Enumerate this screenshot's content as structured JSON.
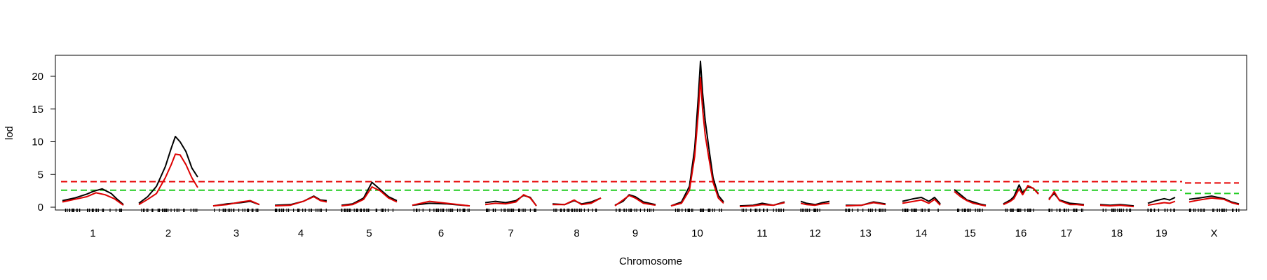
{
  "chart_data": {
    "type": "line",
    "xlabel": "Chromosome",
    "ylabel": "lod",
    "ylim": [
      0,
      23
    ],
    "yticks": [
      0,
      5,
      10,
      15,
      20
    ],
    "grid": false,
    "chromosomes": [
      "1",
      "2",
      "3",
      "4",
      "5",
      "6",
      "7",
      "8",
      "9",
      "10",
      "11",
      "12",
      "13",
      "14",
      "15",
      "16",
      "17",
      "18",
      "19",
      "X"
    ],
    "colors": {
      "series_black": "#000000",
      "series_red": "#dd0000",
      "threshold_red": "#e60000",
      "threshold_green": "#22cc22"
    },
    "thresholds": [
      {
        "color": "red",
        "autosome": 3.9,
        "x_chr": 3.7
      },
      {
        "color": "green",
        "autosome": 2.6,
        "x_chr": 2.1
      }
    ],
    "series": [
      {
        "color": "black",
        "peaks": [
          [
            [
              0,
              1.0
            ],
            [
              0.2,
              1.4
            ],
            [
              0.4,
              2.0
            ],
            [
              0.5,
              2.4
            ],
            [
              0.65,
              2.8
            ],
            [
              0.8,
              2.1
            ],
            [
              0.9,
              1.2
            ],
            [
              1,
              0.4
            ]
          ],
          [
            [
              0,
              0.6
            ],
            [
              0.15,
              1.6
            ],
            [
              0.3,
              3.2
            ],
            [
              0.45,
              6.2
            ],
            [
              0.55,
              9.0
            ],
            [
              0.62,
              10.8
            ],
            [
              0.7,
              10.0
            ],
            [
              0.8,
              8.5
            ],
            [
              0.9,
              6.0
            ],
            [
              1,
              4.6
            ]
          ],
          [
            [
              0,
              0.2
            ],
            [
              0.3,
              0.5
            ],
            [
              0.6,
              0.7
            ],
            [
              0.8,
              0.9
            ],
            [
              1,
              0.4
            ]
          ],
          [
            [
              0,
              0.3
            ],
            [
              0.3,
              0.4
            ],
            [
              0.55,
              0.9
            ],
            [
              0.75,
              1.7
            ],
            [
              0.88,
              1.1
            ],
            [
              1,
              1.0
            ]
          ],
          [
            [
              0,
              0.3
            ],
            [
              0.2,
              0.5
            ],
            [
              0.4,
              1.4
            ],
            [
              0.55,
              3.8
            ],
            [
              0.7,
              2.7
            ],
            [
              0.85,
              1.6
            ],
            [
              1,
              1.0
            ]
          ],
          [
            [
              0,
              0.3
            ],
            [
              0.3,
              0.6
            ],
            [
              0.6,
              0.5
            ],
            [
              1,
              0.2
            ]
          ],
          [
            [
              0,
              0.7
            ],
            [
              0.2,
              0.9
            ],
            [
              0.4,
              0.7
            ],
            [
              0.6,
              1.0
            ],
            [
              0.75,
              1.8
            ],
            [
              0.88,
              1.5
            ],
            [
              1,
              0.2
            ]
          ],
          [
            [
              0,
              0.5
            ],
            [
              0.25,
              0.4
            ],
            [
              0.45,
              1.0
            ],
            [
              0.6,
              0.5
            ],
            [
              0.8,
              0.8
            ],
            [
              1,
              1.4
            ]
          ],
          [
            [
              0,
              0.3
            ],
            [
              0.2,
              0.9
            ],
            [
              0.35,
              1.9
            ],
            [
              0.5,
              1.6
            ],
            [
              0.7,
              0.8
            ],
            [
              1,
              0.4
            ]
          ],
          [
            [
              0,
              0.2
            ],
            [
              0.2,
              0.8
            ],
            [
              0.35,
              3.2
            ],
            [
              0.45,
              9.0
            ],
            [
              0.52,
              17.0
            ],
            [
              0.56,
              22.3
            ],
            [
              0.6,
              17.5
            ],
            [
              0.65,
              13.2
            ],
            [
              0.72,
              9.0
            ],
            [
              0.8,
              4.5
            ],
            [
              0.9,
              1.8
            ],
            [
              1,
              0.8
            ]
          ],
          [
            [
              0,
              0.2
            ],
            [
              0.3,
              0.3
            ],
            [
              0.5,
              0.6
            ],
            [
              0.75,
              0.3
            ],
            [
              1,
              0.8
            ]
          ],
          [
            [
              0,
              0.9
            ],
            [
              0.2,
              0.6
            ],
            [
              0.5,
              0.4
            ],
            [
              0.75,
              0.7
            ],
            [
              1,
              0.9
            ]
          ],
          [
            [
              0,
              0.3
            ],
            [
              0.4,
              0.3
            ],
            [
              0.7,
              0.8
            ],
            [
              1,
              0.5
            ]
          ],
          [
            [
              0,
              0.9
            ],
            [
              0.3,
              1.3
            ],
            [
              0.5,
              1.5
            ],
            [
              0.7,
              0.9
            ],
            [
              0.85,
              1.5
            ],
            [
              1,
              0.5
            ]
          ],
          [
            [
              0,
              2.7
            ],
            [
              0.2,
              1.9
            ],
            [
              0.4,
              1.1
            ],
            [
              0.6,
              0.8
            ],
            [
              0.8,
              0.5
            ],
            [
              1,
              0.3
            ]
          ],
          [
            [
              0,
              0.5
            ],
            [
              0.2,
              1.1
            ],
            [
              0.3,
              1.6
            ],
            [
              0.45,
              3.4
            ],
            [
              0.55,
              2.2
            ],
            [
              0.7,
              3.1
            ],
            [
              0.85,
              2.9
            ],
            [
              1,
              2.1
            ]
          ],
          [
            [
              0,
              1.3
            ],
            [
              0.15,
              2.1
            ],
            [
              0.3,
              1.1
            ],
            [
              0.6,
              0.6
            ],
            [
              0.8,
              0.5
            ],
            [
              1,
              0.4
            ]
          ],
          [
            [
              0,
              0.4
            ],
            [
              0.3,
              0.3
            ],
            [
              0.6,
              0.4
            ],
            [
              1,
              0.2
            ]
          ],
          [
            [
              0,
              0.6
            ],
            [
              0.3,
              1.0
            ],
            [
              0.6,
              1.3
            ],
            [
              0.8,
              1.1
            ],
            [
              1,
              1.5
            ]
          ],
          [
            [
              0,
              1.2
            ],
            [
              0.2,
              1.4
            ],
            [
              0.45,
              1.7
            ],
            [
              0.7,
              1.3
            ],
            [
              0.85,
              0.8
            ],
            [
              1,
              0.5
            ]
          ]
        ]
      },
      {
        "color": "red",
        "peaks": [
          [
            [
              0,
              0.8
            ],
            [
              0.2,
              1.2
            ],
            [
              0.4,
              1.6
            ],
            [
              0.55,
              2.2
            ],
            [
              0.7,
              1.9
            ],
            [
              0.85,
              1.3
            ],
            [
              1,
              0.3
            ]
          ],
          [
            [
              0,
              0.4
            ],
            [
              0.15,
              1.2
            ],
            [
              0.3,
              2.1
            ],
            [
              0.45,
              4.5
            ],
            [
              0.55,
              6.5
            ],
            [
              0.62,
              8.1
            ],
            [
              0.7,
              8.0
            ],
            [
              0.8,
              6.5
            ],
            [
              0.9,
              4.5
            ],
            [
              1,
              3.0
            ]
          ],
          [
            [
              0,
              0.2
            ],
            [
              0.3,
              0.4
            ],
            [
              0.6,
              0.8
            ],
            [
              0.8,
              1.0
            ],
            [
              1,
              0.4
            ]
          ],
          [
            [
              0,
              0.2
            ],
            [
              0.3,
              0.3
            ],
            [
              0.55,
              0.9
            ],
            [
              0.75,
              1.6
            ],
            [
              0.88,
              1.0
            ],
            [
              1,
              0.8
            ]
          ],
          [
            [
              0,
              0.2
            ],
            [
              0.2,
              0.4
            ],
            [
              0.4,
              1.2
            ],
            [
              0.55,
              3.1
            ],
            [
              0.7,
              2.5
            ],
            [
              0.85,
              1.4
            ],
            [
              1,
              0.8
            ]
          ],
          [
            [
              0,
              0.3
            ],
            [
              0.3,
              0.9
            ],
            [
              0.6,
              0.6
            ],
            [
              1,
              0.2
            ]
          ],
          [
            [
              0,
              0.4
            ],
            [
              0.2,
              0.6
            ],
            [
              0.4,
              0.5
            ],
            [
              0.6,
              0.8
            ],
            [
              0.75,
              1.9
            ],
            [
              0.88,
              1.4
            ],
            [
              1,
              0.2
            ]
          ],
          [
            [
              0,
              0.4
            ],
            [
              0.25,
              0.4
            ],
            [
              0.45,
              1.1
            ],
            [
              0.6,
              0.4
            ],
            [
              0.8,
              0.6
            ],
            [
              1,
              1.4
            ]
          ],
          [
            [
              0,
              0.2
            ],
            [
              0.2,
              1.1
            ],
            [
              0.35,
              1.8
            ],
            [
              0.5,
              1.4
            ],
            [
              0.7,
              0.6
            ],
            [
              1,
              0.3
            ]
          ],
          [
            [
              0,
              0.2
            ],
            [
              0.2,
              0.6
            ],
            [
              0.35,
              2.6
            ],
            [
              0.45,
              7.8
            ],
            [
              0.52,
              14.5
            ],
            [
              0.56,
              19.8
            ],
            [
              0.6,
              15.0
            ],
            [
              0.65,
              11.0
            ],
            [
              0.72,
              7.5
            ],
            [
              0.8,
              3.8
            ],
            [
              0.9,
              1.4
            ],
            [
              1,
              0.6
            ]
          ],
          [
            [
              0,
              0.1
            ],
            [
              0.3,
              0.2
            ],
            [
              0.5,
              0.4
            ],
            [
              0.75,
              0.3
            ],
            [
              1,
              0.7
            ]
          ],
          [
            [
              0,
              0.6
            ],
            [
              0.2,
              0.4
            ],
            [
              0.5,
              0.3
            ],
            [
              0.75,
              0.5
            ],
            [
              1,
              0.6
            ]
          ],
          [
            [
              0,
              0.2
            ],
            [
              0.4,
              0.3
            ],
            [
              0.7,
              0.7
            ],
            [
              1,
              0.4
            ]
          ],
          [
            [
              0,
              0.6
            ],
            [
              0.3,
              0.9
            ],
            [
              0.5,
              1.1
            ],
            [
              0.7,
              0.6
            ],
            [
              0.85,
              1.2
            ],
            [
              1,
              0.3
            ]
          ],
          [
            [
              0,
              2.4
            ],
            [
              0.2,
              1.6
            ],
            [
              0.4,
              1.0
            ],
            [
              0.6,
              0.6
            ],
            [
              0.8,
              0.4
            ],
            [
              1,
              0.2
            ]
          ],
          [
            [
              0,
              0.4
            ],
            [
              0.2,
              0.9
            ],
            [
              0.3,
              1.3
            ],
            [
              0.45,
              2.8
            ],
            [
              0.55,
              1.9
            ],
            [
              0.7,
              3.3
            ],
            [
              0.85,
              2.9
            ],
            [
              1,
              2.0
            ]
          ],
          [
            [
              0,
              1.1
            ],
            [
              0.15,
              2.4
            ],
            [
              0.3,
              1.0
            ],
            [
              0.6,
              0.4
            ],
            [
              0.8,
              0.4
            ],
            [
              1,
              0.3
            ]
          ],
          [
            [
              0,
              0.3
            ],
            [
              0.3,
              0.2
            ],
            [
              0.6,
              0.3
            ],
            [
              1,
              0.1
            ]
          ],
          [
            [
              0,
              0.3
            ],
            [
              0.3,
              0.5
            ],
            [
              0.6,
              0.7
            ],
            [
              0.8,
              0.6
            ],
            [
              1,
              0.9
            ]
          ],
          [
            [
              0,
              0.8
            ],
            [
              0.2,
              1.1
            ],
            [
              0.45,
              1.4
            ],
            [
              0.7,
              1.2
            ],
            [
              0.85,
              0.7
            ],
            [
              1,
              0.4
            ]
          ]
        ]
      }
    ]
  }
}
